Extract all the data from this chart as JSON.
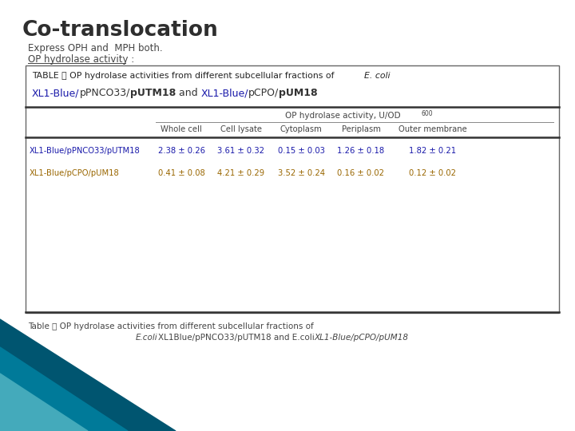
{
  "title": "Co-translocation",
  "subtitle1": "Express OPH and  MPH both.",
  "subtitle2": "OP hydrolase activity :",
  "table_title_plain": "TABLE ： OP hydrolase activities from different subcellular fractions of ",
  "table_title_italic": "E. coli",
  "table_subtitle": "XL1-Blue/pPNCO33/pUTM18 and XL1-Blue/pCPO/pUM18",
  "col_header_main": "OP hydrolase activity, U/OD",
  "col_header_sub": "600",
  "col_headers": [
    "Whole cell",
    "Cell lysate",
    "Cytoplasm",
    "Periplasm",
    "Outer membrane"
  ],
  "row_labels": [
    "XL1-Blue/pPNCO33/pUTM18",
    "XL1-Blue/pCPO/pUM18"
  ],
  "data_row1": [
    "2.38 ± 0.26",
    "3.61 ± 0.32",
    "0.15 ± 0.03",
    "1.26 ± 0.18",
    "1.82 ± 0.21"
  ],
  "data_row2": [
    "0.41 ± 0.08",
    "4.21 ± 0.29",
    "3.52 ± 0.24",
    "0.16 ± 0.02",
    "0.12 ± 0.02"
  ],
  "caption_line1": "Table ： OP hydrolase activities from different subcellular fractions of",
  "bg_color": "#ffffff",
  "title_color": "#2e2e2e",
  "row1_label_color": "#1a1aaa",
  "row2_label_color": "#996600",
  "row1_data_color": "#1a1aaa",
  "row2_data_color": "#996600",
  "table_text_color": "#222222",
  "col_header_color": "#444444",
  "triangle_dark": "#005570",
  "triangle_mid": "#007a99",
  "triangle_light": "#44aabb"
}
